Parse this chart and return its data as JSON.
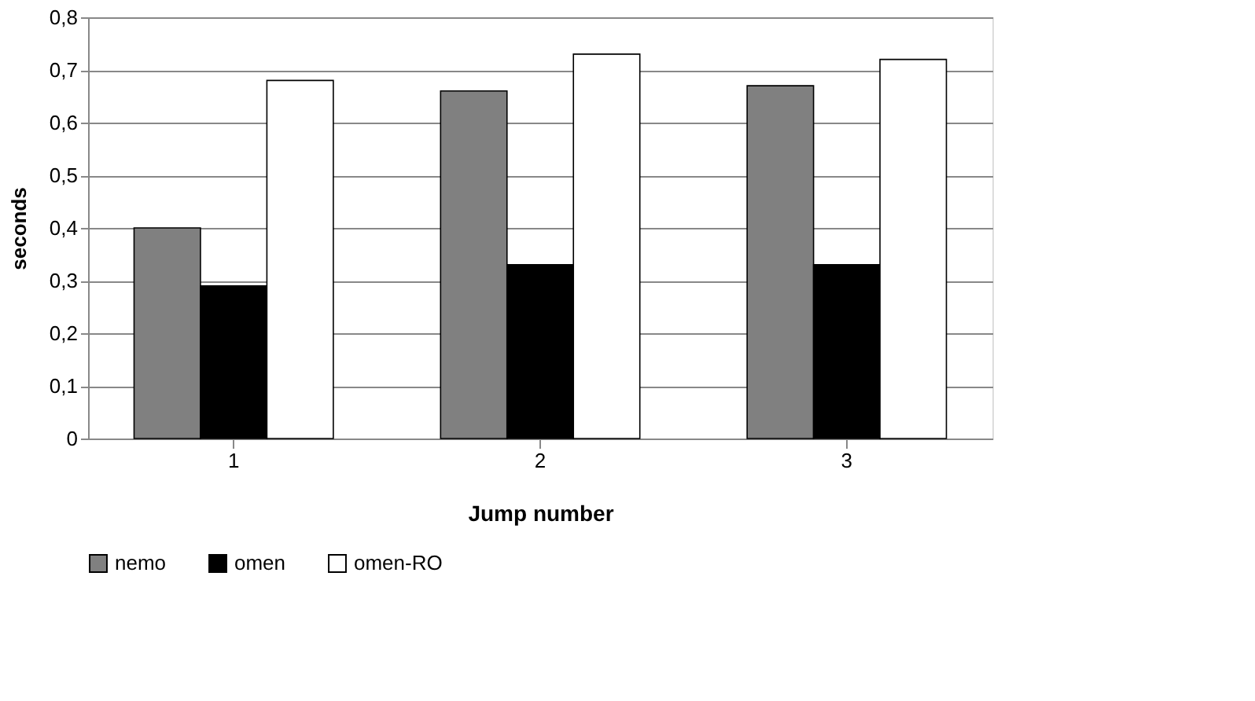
{
  "chart_data": {
    "type": "bar",
    "xlabel": "Jump number",
    "ylabel": "seconds",
    "categories": [
      "1",
      "2",
      "3"
    ],
    "series": [
      {
        "name": "nemo",
        "color": "#808080",
        "values": [
          0.4,
          0.66,
          0.67
        ]
      },
      {
        "name": "omen",
        "color": "#000000",
        "values": [
          0.29,
          0.33,
          0.33
        ]
      },
      {
        "name": "omen-RO",
        "color": "#ffffff",
        "values": [
          0.68,
          0.73,
          0.72
        ]
      }
    ],
    "ylim": [
      0,
      0.8
    ],
    "yticks": [
      {
        "value": 0,
        "label": "0"
      },
      {
        "value": 0.1,
        "label": "0,1"
      },
      {
        "value": 0.2,
        "label": "0,2"
      },
      {
        "value": 0.3,
        "label": "0,3"
      },
      {
        "value": 0.4,
        "label": "0,4"
      },
      {
        "value": 0.5,
        "label": "0,5"
      },
      {
        "value": 0.6,
        "label": "0,6"
      },
      {
        "value": 0.7,
        "label": "0,7"
      },
      {
        "value": 0.8,
        "label": "0,8"
      }
    ],
    "grid": "y",
    "legend": "bottom"
  }
}
